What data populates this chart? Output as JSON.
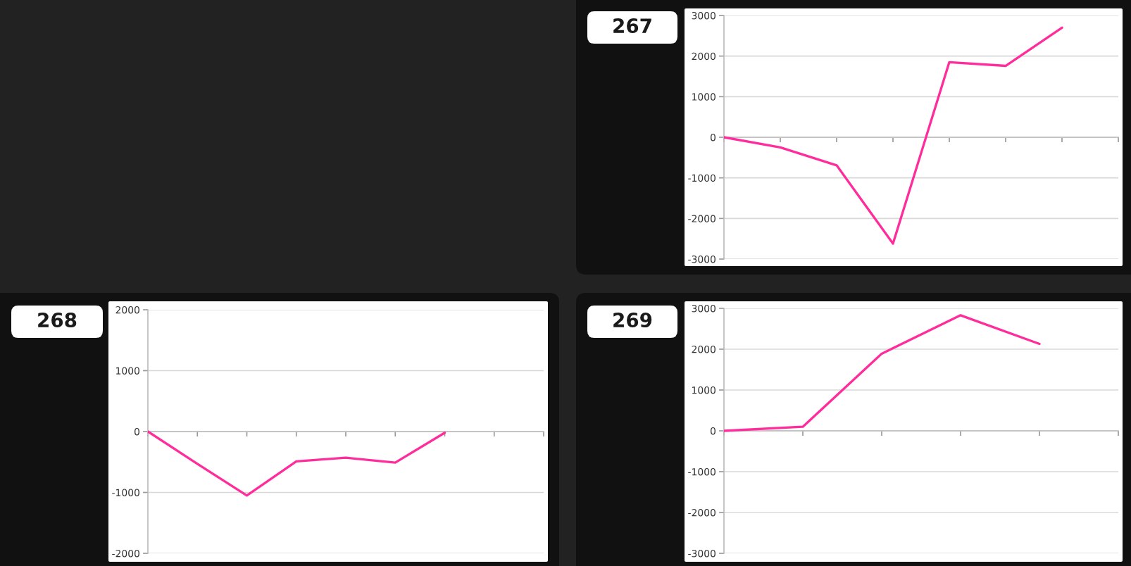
{
  "chart_data": [
    {
      "type": "line",
      "title": "267",
      "color": "#ff2d9b",
      "categories": [
        null,
        null,
        null,
        null,
        null,
        null,
        null,
        null
      ],
      "values": [
        0,
        -250,
        -690,
        -2620,
        1850,
        1760,
        2700,
        null
      ],
      "ylim": [
        -3000,
        3000
      ],
      "yticks": [
        -3000,
        -2000,
        -1000,
        0,
        1000,
        2000,
        3000
      ],
      "grid": "y",
      "tick_labels": "y"
    },
    {
      "type": "line",
      "title": "268",
      "color": "#ff2d9b",
      "categories": [
        null,
        null,
        null,
        null,
        null,
        null,
        null,
        null,
        null
      ],
      "values": [
        0,
        -530,
        -1050,
        -490,
        -430,
        -510,
        -20,
        null,
        null
      ],
      "ylim": [
        -2000,
        2000
      ],
      "yticks": [
        -2000,
        -1000,
        0,
        1000,
        2000
      ],
      "grid": "y",
      "tick_labels": "y"
    },
    {
      "type": "line",
      "title": "269",
      "color": "#ff2d9b",
      "categories": [
        null,
        null,
        null,
        null,
        null,
        null
      ],
      "values": [
        0,
        100,
        1890,
        2830,
        2130,
        null
      ],
      "ylim": [
        -3000,
        3000
      ],
      "yticks": [
        -3000,
        -2000,
        -1000,
        0,
        1000,
        2000,
        3000
      ],
      "grid": "y",
      "tick_labels": "y"
    }
  ]
}
